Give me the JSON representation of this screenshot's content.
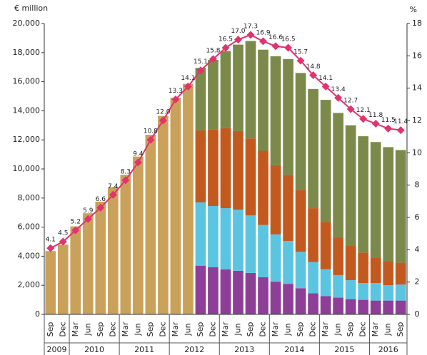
{
  "chart_data": {
    "type": "bar",
    "y_label": "€ million",
    "y2_label": "%",
    "categories": [
      "Sep",
      "Dec",
      "Mar",
      "Jun",
      "Sep",
      "Dec",
      "Mar",
      "Jun",
      "Sep",
      "Dec",
      "Mar",
      "Jun",
      "Sep",
      "Dec",
      "Mar",
      "Jun",
      "Sep",
      "Dec",
      "Mar",
      "Jun",
      "Sep",
      "Dec",
      "Mar",
      "Jun",
      "Sep",
      "Dec",
      "Mar",
      "Jun",
      "Sep"
    ],
    "years": [
      "2009",
      "2010",
      "2011",
      "2012",
      "2013",
      "2014",
      "2015",
      "2016"
    ],
    "ylim": [
      0,
      20000
    ],
    "yticks": [
      0,
      {
        "value": 2000,
        "label": "2,000"
      },
      {
        "value": 4000,
        "label": "4,000"
      },
      {
        "value": 6000,
        "label": "6,000"
      },
      {
        "value": 8000,
        "label": "8,000"
      },
      {
        "value": 10000,
        "label": "10,000"
      },
      {
        "value": 12000,
        "label": "12,000"
      },
      {
        "value": 14000,
        "label": "14,000"
      },
      {
        "value": 16000,
        "label": "16,000"
      },
      {
        "value": 18000,
        "label": "18,000"
      },
      {
        "value": 20000,
        "label": "20,000"
      }
    ],
    "y2lim": [
      0,
      18
    ],
    "y2ticks": [
      0,
      2,
      4,
      6,
      8,
      10,
      12,
      14,
      16,
      18
    ],
    "stacked": true,
    "series": [
      {
        "color": "#c9a15b",
        "values": [
          4350,
          4800,
          6050,
          6950,
          7750,
          8750,
          9600,
          10850,
          12350,
          13650,
          14900,
          15850,
          null,
          null,
          null,
          null,
          null,
          null,
          null,
          null,
          null,
          null,
          null,
          null,
          null,
          null,
          null,
          null,
          null
        ]
      },
      {
        "color": "#8d3f97",
        "values": [
          null,
          null,
          null,
          null,
          null,
          null,
          null,
          null,
          null,
          null,
          null,
          null,
          3350,
          3250,
          3100,
          3000,
          2850,
          2550,
          2250,
          2100,
          1800,
          1450,
          1250,
          1150,
          1050,
          1000,
          950,
          950,
          950
        ]
      },
      {
        "color": "#5bc5e1",
        "values": [
          null,
          null,
          null,
          null,
          null,
          null,
          null,
          null,
          null,
          null,
          null,
          null,
          4350,
          4200,
          4200,
          4200,
          3950,
          3600,
          3250,
          2950,
          2500,
          2150,
          1850,
          1550,
          1300,
          1150,
          1200,
          1050,
          1100
        ]
      },
      {
        "color": "#c25a20",
        "values": [
          null,
          null,
          null,
          null,
          null,
          null,
          null,
          null,
          null,
          null,
          null,
          null,
          4950,
          5250,
          5500,
          5400,
          5300,
          5100,
          4750,
          4550,
          4250,
          3700,
          3250,
          2600,
          2400,
          2100,
          1750,
          1650,
          1500
        ]
      },
      {
        "color": "#7b8a4b",
        "values": [
          null,
          null,
          null,
          null,
          null,
          null,
          null,
          null,
          null,
          null,
          null,
          null,
          4300,
          4800,
          5300,
          5950,
          6700,
          6950,
          7500,
          7950,
          8050,
          8200,
          8400,
          8550,
          8250,
          8000,
          7950,
          7850,
          7750
        ]
      },
      {
        "type": "line",
        "axis": "y2",
        "color": "#e3336c",
        "values": [
          4.1,
          4.5,
          5.2,
          5.9,
          6.6,
          7.4,
          8.3,
          9.4,
          10.8,
          12.0,
          13.3,
          14.1,
          15.1,
          15.8,
          16.5,
          17.0,
          17.3,
          16.9,
          16.6,
          16.5,
          15.7,
          14.8,
          14.1,
          13.4,
          12.7,
          12.1,
          11.8,
          11.5,
          11.4
        ],
        "value_labels": [
          "4.1",
          "4.5",
          "5.2",
          "5.9",
          "6.6",
          "7.4",
          "8.3",
          "9.4",
          "10.8",
          "12.0",
          "13.3",
          "14.1",
          "15.1",
          "15.8",
          "16.5",
          "17.0",
          "17.3",
          "16.9",
          "16.6",
          "16.5",
          "15.7",
          "14.8",
          "14.1",
          "13.4",
          "12.7",
          "12.1",
          "11.8",
          "11.5",
          "11.4"
        ]
      }
    ]
  }
}
